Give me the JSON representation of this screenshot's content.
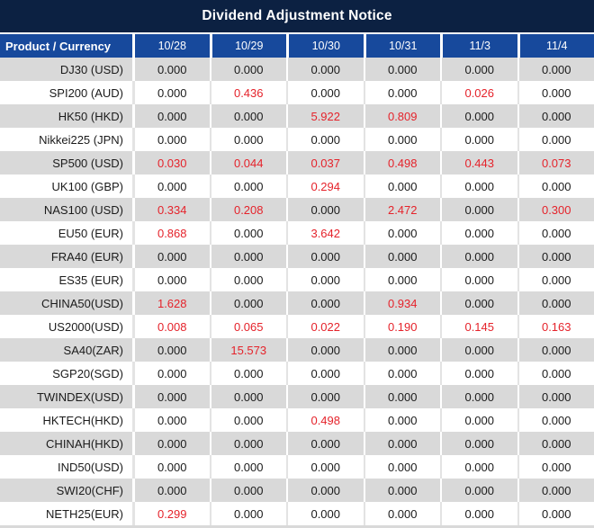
{
  "title": "Dividend Adjustment Notice",
  "colors": {
    "title_bg": "#0c2142",
    "header_bg": "#17499c",
    "row_alt_bg": "#d9d9d9",
    "row_bg": "#ffffff",
    "text": "#1b1b1b",
    "highlight_red": "#e5232b",
    "header_text": "#ffffff"
  },
  "table": {
    "product_header": "Product / Currency",
    "date_headers": [
      "10/28",
      "10/29",
      "10/30",
      "10/31",
      "11/3",
      "11/4"
    ],
    "rows": [
      {
        "product": "DJ30 (USD)",
        "values": [
          "0.000",
          "0.000",
          "0.000",
          "0.000",
          "0.000",
          "0.000"
        ],
        "red": [
          false,
          false,
          false,
          false,
          false,
          false
        ]
      },
      {
        "product": "SPI200 (AUD)",
        "values": [
          "0.000",
          "0.436",
          "0.000",
          "0.000",
          "0.026",
          "0.000"
        ],
        "red": [
          false,
          true,
          false,
          false,
          true,
          false
        ]
      },
      {
        "product": "HK50 (HKD)",
        "values": [
          "0.000",
          "0.000",
          "5.922",
          "0.809",
          "0.000",
          "0.000"
        ],
        "red": [
          false,
          false,
          true,
          true,
          false,
          false
        ]
      },
      {
        "product": "Nikkei225 (JPN)",
        "values": [
          "0.000",
          "0.000",
          "0.000",
          "0.000",
          "0.000",
          "0.000"
        ],
        "red": [
          false,
          false,
          false,
          false,
          false,
          false
        ]
      },
      {
        "product": "SP500 (USD)",
        "values": [
          "0.030",
          "0.044",
          "0.037",
          "0.498",
          "0.443",
          "0.073"
        ],
        "red": [
          true,
          true,
          true,
          true,
          true,
          true
        ]
      },
      {
        "product": "UK100 (GBP)",
        "values": [
          "0.000",
          "0.000",
          "0.294",
          "0.000",
          "0.000",
          "0.000"
        ],
        "red": [
          false,
          false,
          true,
          false,
          false,
          false
        ]
      },
      {
        "product": "NAS100 (USD)",
        "values": [
          "0.334",
          "0.208",
          "0.000",
          "2.472",
          "0.000",
          "0.300"
        ],
        "red": [
          true,
          true,
          false,
          true,
          false,
          true
        ]
      },
      {
        "product": "EU50 (EUR)",
        "values": [
          "0.868",
          "0.000",
          "3.642",
          "0.000",
          "0.000",
          "0.000"
        ],
        "red": [
          true,
          false,
          true,
          false,
          false,
          false
        ]
      },
      {
        "product": "FRA40 (EUR)",
        "values": [
          "0.000",
          "0.000",
          "0.000",
          "0.000",
          "0.000",
          "0.000"
        ],
        "red": [
          false,
          false,
          false,
          false,
          false,
          false
        ]
      },
      {
        "product": "ES35 (EUR)",
        "values": [
          "0.000",
          "0.000",
          "0.000",
          "0.000",
          "0.000",
          "0.000"
        ],
        "red": [
          false,
          false,
          false,
          false,
          false,
          false
        ]
      },
      {
        "product": "CHINA50(USD)",
        "values": [
          "1.628",
          "0.000",
          "0.000",
          "0.934",
          "0.000",
          "0.000"
        ],
        "red": [
          true,
          false,
          false,
          true,
          false,
          false
        ]
      },
      {
        "product": "US2000(USD)",
        "values": [
          "0.008",
          "0.065",
          "0.022",
          "0.190",
          "0.145",
          "0.163"
        ],
        "red": [
          true,
          true,
          true,
          true,
          true,
          true
        ]
      },
      {
        "product": "SA40(ZAR)",
        "values": [
          "0.000",
          "15.573",
          "0.000",
          "0.000",
          "0.000",
          "0.000"
        ],
        "red": [
          false,
          true,
          false,
          false,
          false,
          false
        ]
      },
      {
        "product": "SGP20(SGD)",
        "values": [
          "0.000",
          "0.000",
          "0.000",
          "0.000",
          "0.000",
          "0.000"
        ],
        "red": [
          false,
          false,
          false,
          false,
          false,
          false
        ]
      },
      {
        "product": "TWINDEX(USD)",
        "values": [
          "0.000",
          "0.000",
          "0.000",
          "0.000",
          "0.000",
          "0.000"
        ],
        "red": [
          false,
          false,
          false,
          false,
          false,
          false
        ]
      },
      {
        "product": "HKTECH(HKD)",
        "values": [
          "0.000",
          "0.000",
          "0.498",
          "0.000",
          "0.000",
          "0.000"
        ],
        "red": [
          false,
          false,
          true,
          false,
          false,
          false
        ]
      },
      {
        "product": "CHINAH(HKD)",
        "values": [
          "0.000",
          "0.000",
          "0.000",
          "0.000",
          "0.000",
          "0.000"
        ],
        "red": [
          false,
          false,
          false,
          false,
          false,
          false
        ]
      },
      {
        "product": "IND50(USD)",
        "values": [
          "0.000",
          "0.000",
          "0.000",
          "0.000",
          "0.000",
          "0.000"
        ],
        "red": [
          false,
          false,
          false,
          false,
          false,
          false
        ]
      },
      {
        "product": "SWI20(CHF)",
        "values": [
          "0.000",
          "0.000",
          "0.000",
          "0.000",
          "0.000",
          "0.000"
        ],
        "red": [
          false,
          false,
          false,
          false,
          false,
          false
        ]
      },
      {
        "product": "NETH25(EUR)",
        "values": [
          "0.299",
          "0.000",
          "0.000",
          "0.000",
          "0.000",
          "0.000"
        ],
        "red": [
          true,
          false,
          false,
          false,
          false,
          false
        ]
      }
    ]
  }
}
